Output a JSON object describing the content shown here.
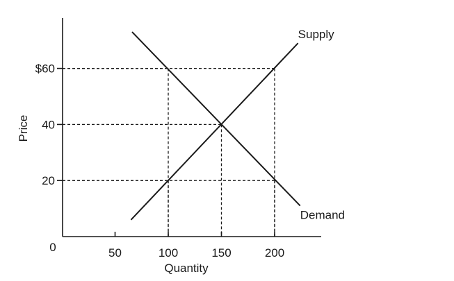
{
  "chart_data": {
    "type": "line",
    "xlabel": "Quantity",
    "ylabel": "Price",
    "origin_label": "0",
    "x_ticks": [
      {
        "value": 50,
        "label": "50"
      },
      {
        "value": 100,
        "label": "100"
      },
      {
        "value": 150,
        "label": "150"
      },
      {
        "value": 200,
        "label": "200"
      }
    ],
    "y_ticks": [
      {
        "value": 20,
        "label": "20"
      },
      {
        "value": 40,
        "label": "40"
      },
      {
        "value": 60,
        "label": "$60"
      }
    ],
    "xlim": [
      0,
      240
    ],
    "ylim": [
      0,
      78
    ],
    "grid": false,
    "series": [
      {
        "name": "Supply",
        "x": [
          65,
          222
        ],
        "y": [
          6,
          69
        ]
      },
      {
        "name": "Demand",
        "x": [
          66,
          224
        ],
        "y": [
          73,
          11
        ]
      }
    ],
    "guides": [
      {
        "x": 100,
        "y": 60
      },
      {
        "x": 100,
        "y": 20
      },
      {
        "x": 150,
        "y": 40
      },
      {
        "x": 200,
        "y": 60
      },
      {
        "x": 200,
        "y": 20
      }
    ],
    "colors": {
      "ink": "#1a1a1a"
    }
  }
}
